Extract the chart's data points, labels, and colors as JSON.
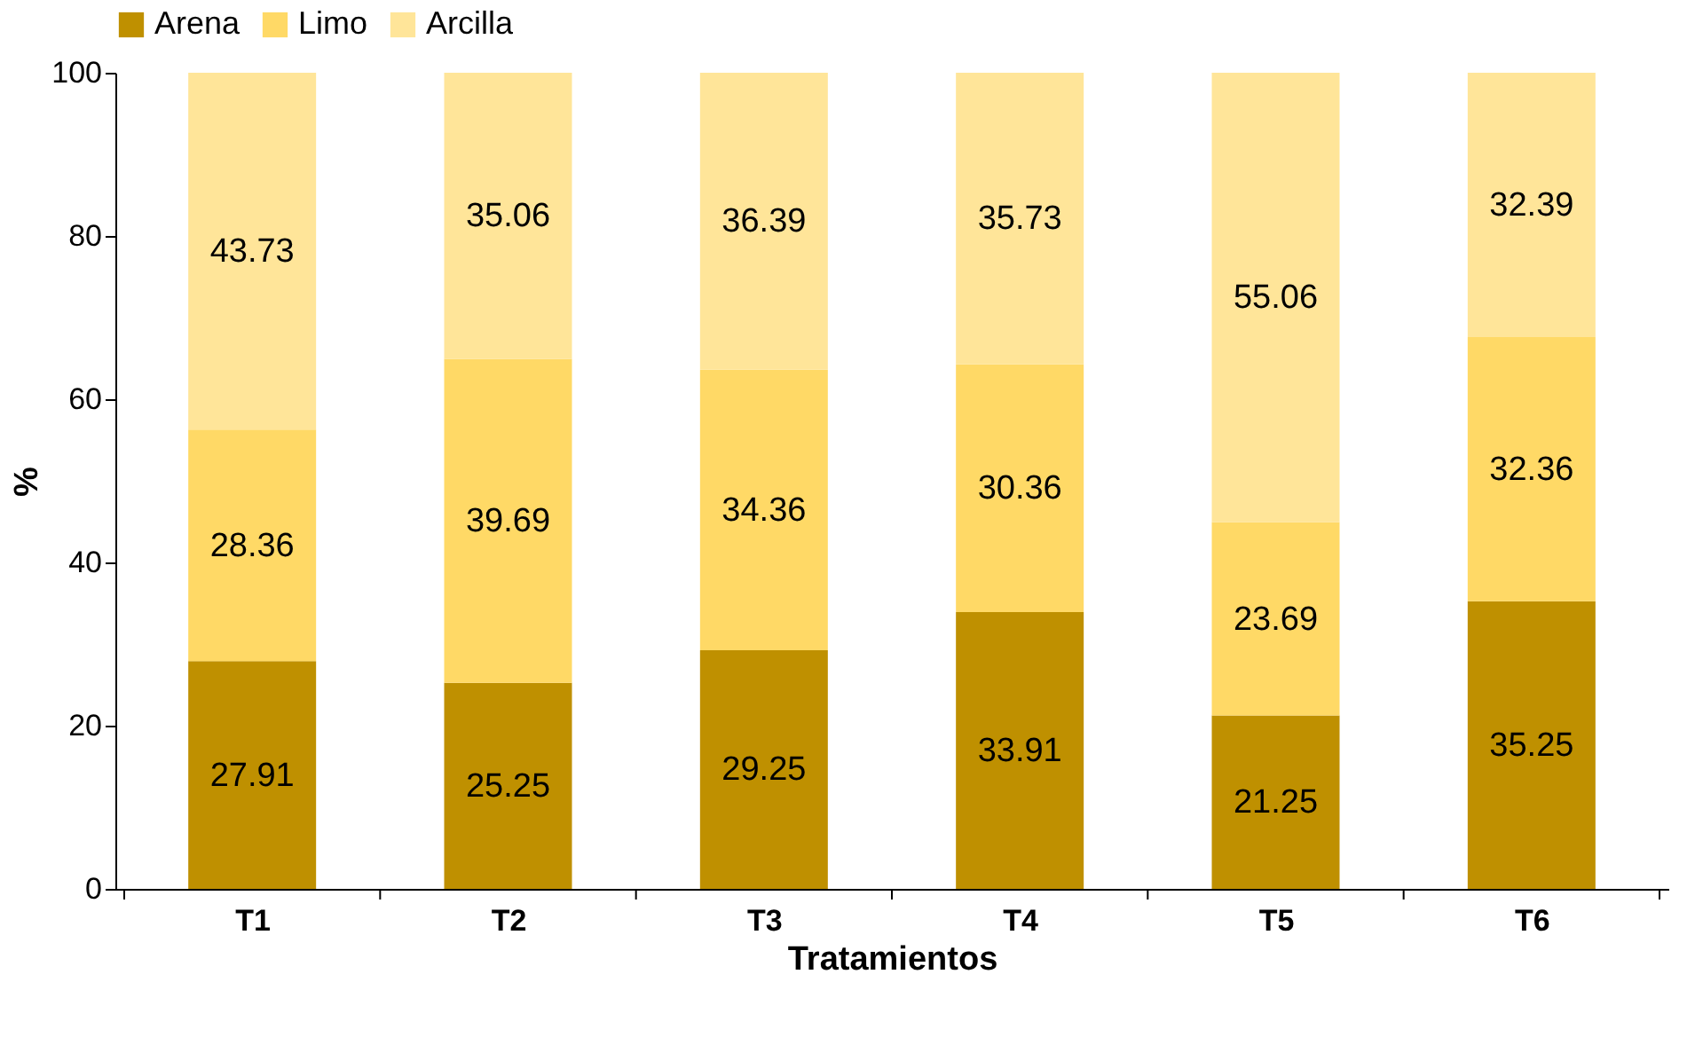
{
  "chart_data": {
    "type": "bar",
    "stacked": true,
    "xlabel": "Tratamientos",
    "ylabel": "%",
    "categories": [
      "T1",
      "T2",
      "T3",
      "T4",
      "T5",
      "T6"
    ],
    "series": [
      {
        "name": "Arena",
        "color": "#bf9000",
        "values": [
          27.91,
          25.25,
          29.25,
          33.91,
          21.25,
          35.25
        ]
      },
      {
        "name": "Limo",
        "color": "#ffd966",
        "values": [
          28.36,
          39.69,
          34.36,
          30.36,
          23.69,
          32.36
        ]
      },
      {
        "name": "Arcilla",
        "color": "#ffe599",
        "values": [
          43.73,
          35.06,
          36.39,
          35.73,
          55.06,
          32.39
        ]
      }
    ],
    "data_labels": true,
    "ylim": [
      0,
      100
    ],
    "yticks": [
      0,
      20,
      40,
      60,
      80,
      100
    ],
    "grid": false,
    "legend": "top"
  }
}
